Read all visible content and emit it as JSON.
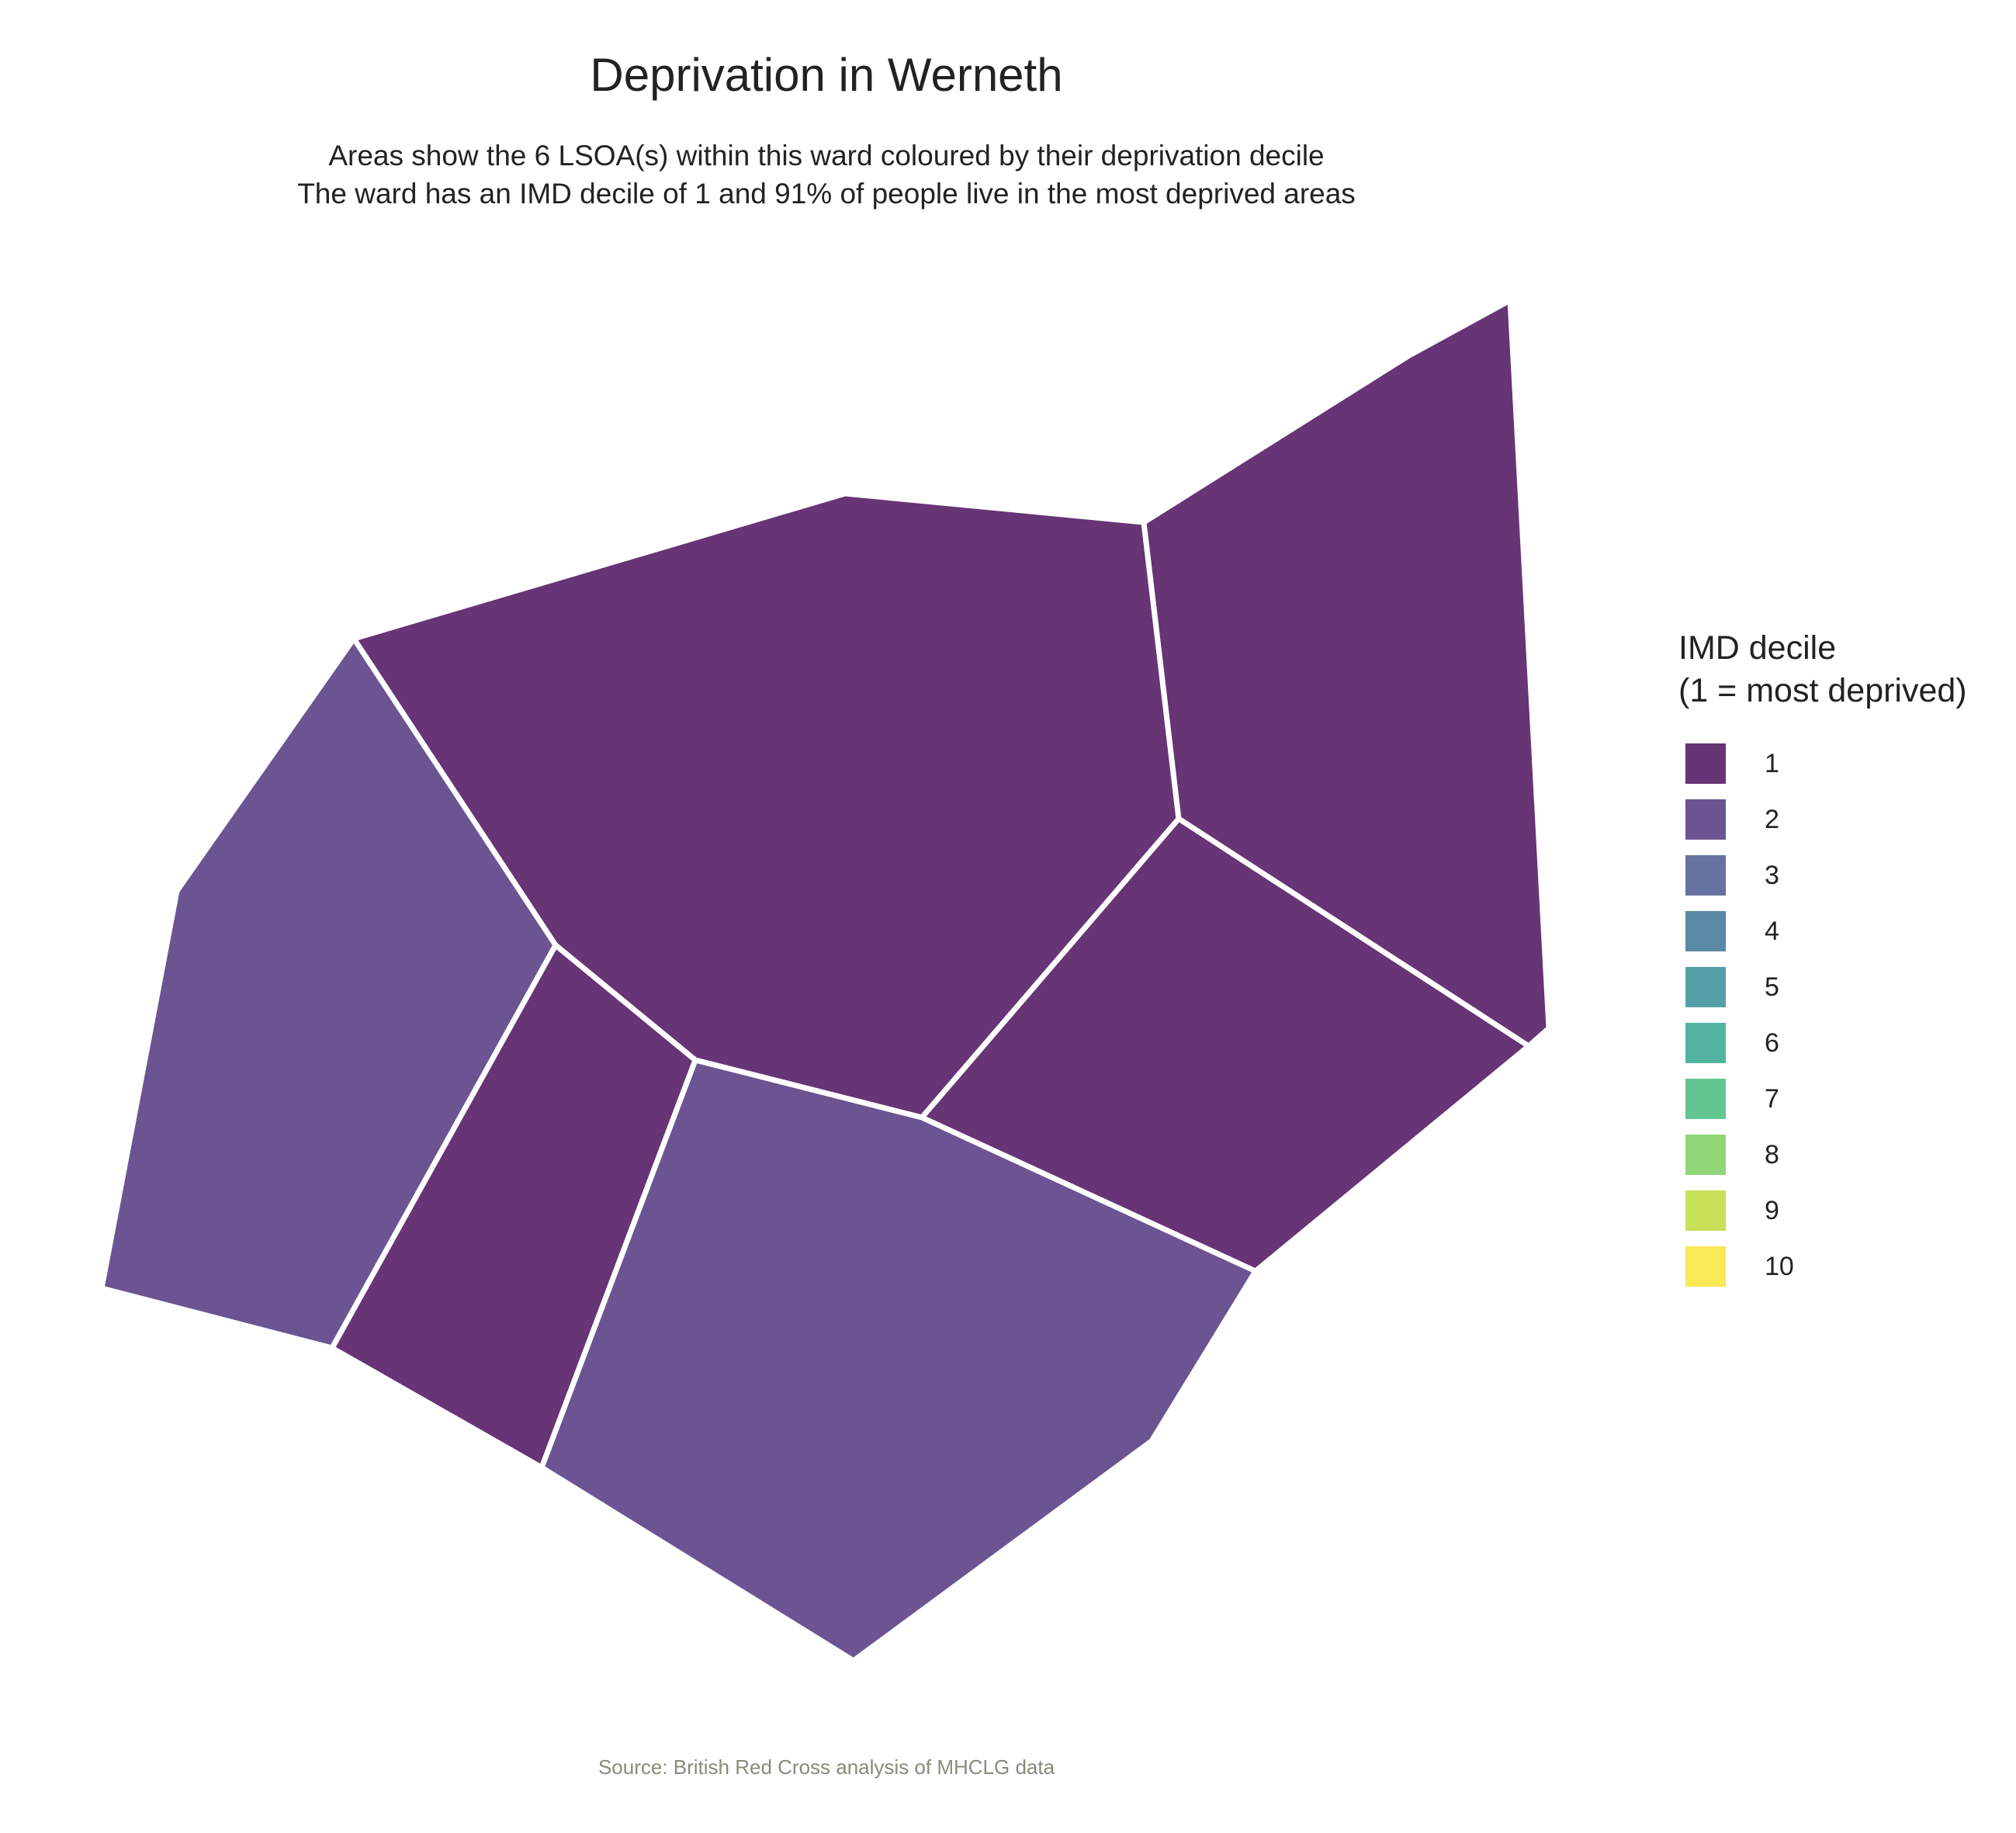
{
  "title": "Deprivation in Werneth",
  "subtitle": {
    "line1": "Areas show the 6 LSOA(s) within this ward coloured by their deprivation decile",
    "line2": "The ward has an IMD decile of 1 and 91% of people live in the most deprived areas"
  },
  "caption": "Source: British Red Cross analysis of MHCLG data",
  "map": {
    "areas": [
      {
        "name": "area-north-central",
        "decile": 1
      },
      {
        "name": "area-north-east",
        "decile": 1
      },
      {
        "name": "area-east",
        "decile": 1
      },
      {
        "name": "area-south-central",
        "decile": 2
      },
      {
        "name": "area-west",
        "decile": 2
      },
      {
        "name": "area-south-west-strip",
        "decile": 1
      }
    ]
  },
  "legend": {
    "title_line1": "IMD decile",
    "title_line2": "(1 = most deprived)",
    "items": [
      {
        "label": "1",
        "color": "#673475"
      },
      {
        "label": "2",
        "color": "#6c5493"
      },
      {
        "label": "3",
        "color": "#6672a0"
      },
      {
        "label": "4",
        "color": "#5a89a6"
      },
      {
        "label": "5",
        "color": "#559fa8"
      },
      {
        "label": "6",
        "color": "#52b4a0"
      },
      {
        "label": "7",
        "color": "#62c592"
      },
      {
        "label": "8",
        "color": "#8ed677"
      },
      {
        "label": "9",
        "color": "#c7e158"
      },
      {
        "label": "10",
        "color": "#fae855"
      }
    ]
  }
}
